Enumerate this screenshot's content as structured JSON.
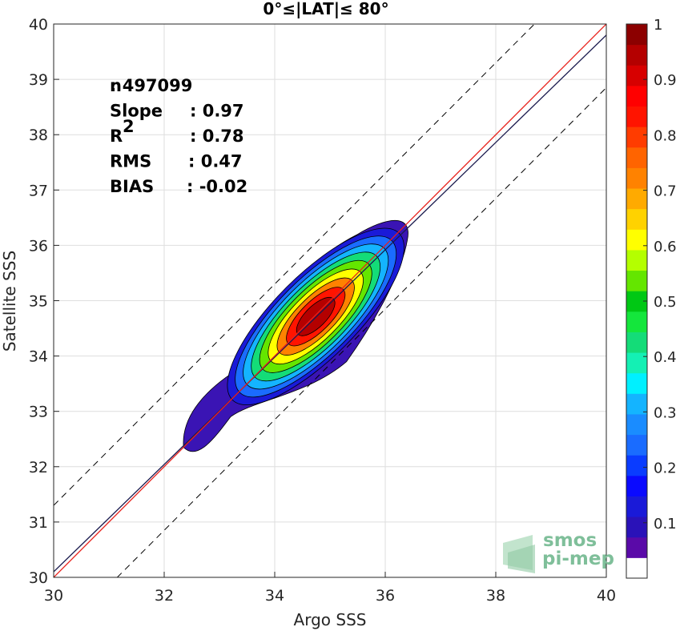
{
  "chart_data": {
    "type": "contour-density",
    "title": "0°≤|LAT|≤ 80°",
    "xlabel": "Argo SSS",
    "ylabel": "Satellite SSS",
    "xlim": [
      30,
      40
    ],
    "ylim": [
      30,
      40
    ],
    "xticks": [
      30,
      32,
      34,
      36,
      38,
      40
    ],
    "yticks": [
      30,
      31,
      32,
      33,
      34,
      35,
      36,
      37,
      38,
      39,
      40
    ],
    "grid": true,
    "stats": [
      {
        "label": "n",
        "value": ": 497099"
      },
      {
        "label": "Slope",
        "value": ": 0.97"
      },
      {
        "label": "R",
        "sup": "2",
        "value": ": 0.78"
      },
      {
        "label": "RMS",
        "value": ": 0.47"
      },
      {
        "label": "BIAS",
        "value": ": -0.02"
      }
    ],
    "lines": {
      "identity": {
        "slope": 1.0,
        "intercept": 0.0,
        "color": "#e8211b"
      },
      "fit": {
        "slope": 0.97,
        "intercept": 1.0,
        "color": "#1a1a4e"
      },
      "bounds": [
        {
          "slope": 1.0,
          "intercept": 1.3
        },
        {
          "slope": 1.0,
          "intercept": -1.15
        }
      ]
    },
    "density": {
      "center": [
        34.8,
        34.8
      ],
      "major_axis_deg": 45,
      "contour_levels": [
        0.05,
        0.15,
        0.25,
        0.35,
        0.45,
        0.55,
        0.65,
        0.75,
        0.85,
        0.95
      ]
    },
    "colorbar": {
      "range": [
        0,
        1
      ],
      "ticks": [
        {
          "v": 0.1,
          "label": "0.1"
        },
        {
          "v": 0.2,
          "label": "0.2"
        },
        {
          "v": 0.3,
          "label": "0.3"
        },
        {
          "v": 0.4,
          "label": "0.4"
        },
        {
          "v": 0.5,
          "label": "0.5"
        },
        {
          "v": 0.6,
          "label": "0.6"
        },
        {
          "v": 0.7,
          "label": "0.7"
        },
        {
          "v": 0.8,
          "label": "0.8"
        },
        {
          "v": 0.9,
          "label": "0.9"
        },
        {
          "v": 1.0,
          "label": "1"
        }
      ],
      "colors": [
        "#ffffff",
        "#5a0aa8",
        "#2a12b8",
        "#1a1ad8",
        "#0a0aff",
        "#0a3cff",
        "#1a6cff",
        "#1a8cff",
        "#14b4ff",
        "#00f0ff",
        "#14f0b4",
        "#14dc78",
        "#14e63c",
        "#00c814",
        "#64e600",
        "#b4ff00",
        "#ffff00",
        "#ffd200",
        "#ffaa00",
        "#ff8200",
        "#ff6400",
        "#ff3c00",
        "#ff1400",
        "#ff0000",
        "#d70000",
        "#b40000",
        "#8c0000"
      ]
    }
  },
  "logo": {
    "line1": "smos",
    "line2": "pi-mep"
  }
}
